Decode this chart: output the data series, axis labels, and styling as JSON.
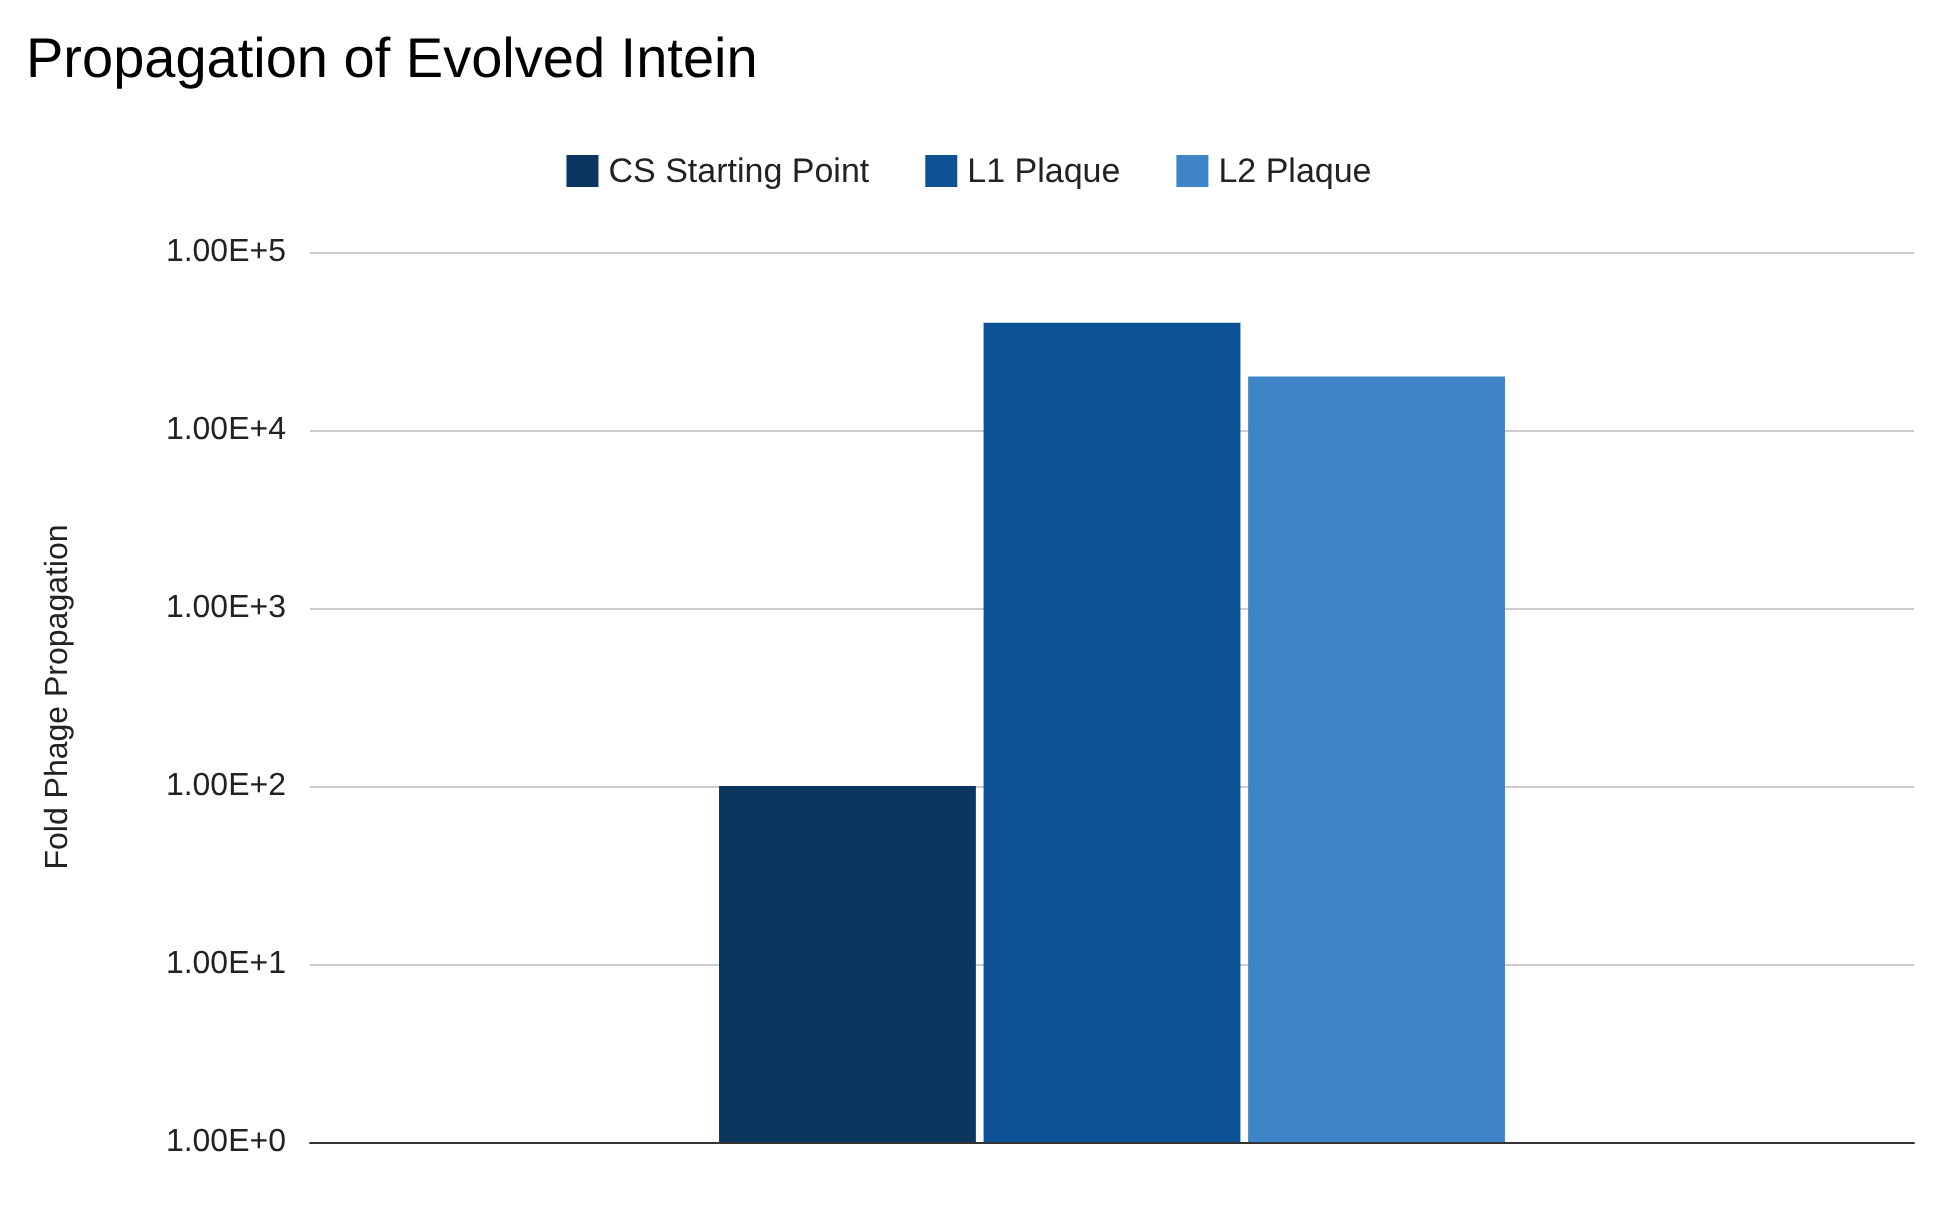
{
  "chart_data": {
    "type": "bar",
    "title": "Propagation of Evolved Intein",
    "ylabel": "Fold Phage Propagation",
    "categories": [
      null
    ],
    "series": [
      {
        "name": "CS Starting Point",
        "color": "#0b3660",
        "values": [
          100
        ]
      },
      {
        "name": "L1 Plaque",
        "color": "#0e5296",
        "values": [
          40000
        ]
      },
      {
        "name": "L2 Plaque",
        "color": "#3d85c6",
        "values": [
          20000
        ]
      }
    ],
    "log": "y",
    "ylim": [
      1,
      100000
    ],
    "yticks": [
      {
        "value": 1,
        "label": "1.00E+0"
      },
      {
        "value": 10,
        "label": "1.00E+1"
      },
      {
        "value": 100,
        "label": "1.00E+2"
      },
      {
        "value": 1000,
        "label": "1.00E+3"
      },
      {
        "value": 10000,
        "label": "1.00E+4"
      },
      {
        "value": 100000,
        "label": "1.00E+5"
      }
    ],
    "grid": "y",
    "legend": "top"
  }
}
